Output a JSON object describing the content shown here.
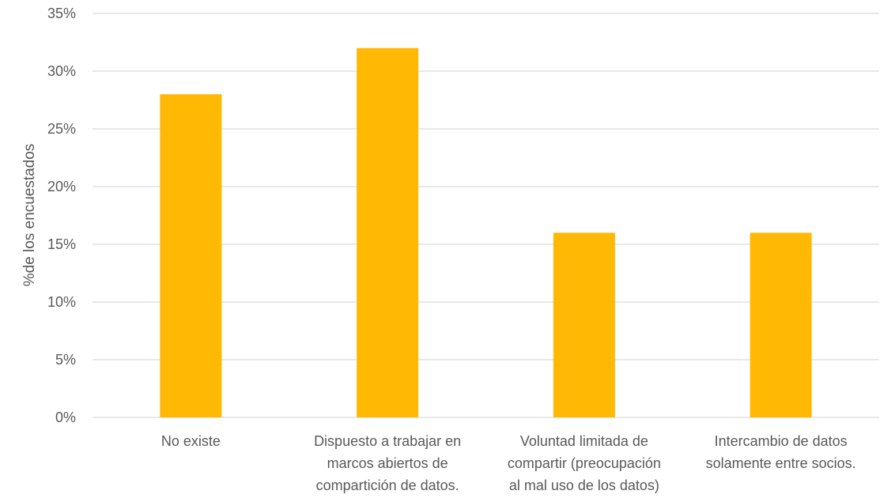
{
  "chart_data": {
    "type": "bar",
    "title": "",
    "xlabel": "",
    "ylabel": "%de los encuestados",
    "ylim": [
      0,
      35
    ],
    "y_ticks": [
      0,
      5,
      10,
      15,
      20,
      25,
      30,
      35
    ],
    "y_tick_format": "percent",
    "grid": true,
    "legend": "none",
    "bar_color": "#FFB905",
    "categories": [
      [
        "No existe"
      ],
      [
        "Dispuesto a trabajar en",
        "marcos abiertos de",
        "compartición de datos."
      ],
      [
        "Voluntad limitada de",
        "compartir (preocupación",
        "al mal uso de los datos)"
      ],
      [
        "Intercambio de datos",
        "solamente entre socios."
      ]
    ],
    "values": [
      28,
      32,
      16,
      16
    ]
  }
}
